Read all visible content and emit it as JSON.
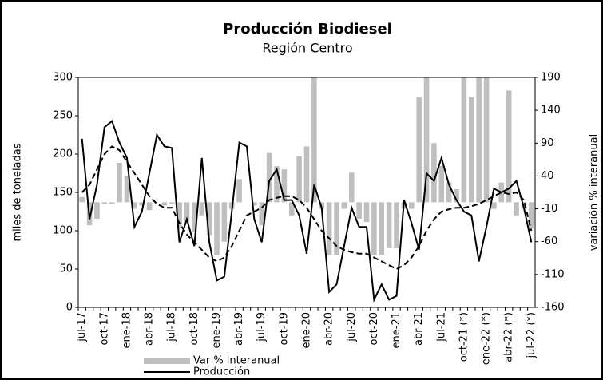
{
  "chart_data": {
    "type": "bar-line",
    "title": "Producción Biodiesel",
    "subtitle": "Región Centro",
    "ylabel": "miles de toneladas",
    "y2label": "variación % interanual",
    "categories": [
      "jul-17",
      null,
      null,
      "oct-17",
      null,
      null,
      "ene-18",
      null,
      null,
      "abr-18",
      null,
      null,
      "jul-18",
      null,
      null,
      "oct-18",
      null,
      null,
      "ene-19",
      null,
      null,
      "abr-19",
      null,
      null,
      "jul-19",
      null,
      null,
      "oct-19",
      null,
      null,
      "ene-20",
      null,
      null,
      "abr-20",
      null,
      null,
      "jul-20",
      null,
      null,
      "oct-20",
      null,
      null,
      "ene-21",
      null,
      null,
      "abr-21",
      null,
      null,
      "jul-21",
      null,
      null,
      "oct-21 (*)",
      null,
      null,
      "ene-22 (*)",
      null,
      null,
      "abr-22 (*)",
      null,
      null,
      "jul-22 (*)"
    ],
    "ylim": [
      0,
      300
    ],
    "yticks": [
      0,
      50,
      100,
      150,
      200,
      250,
      300
    ],
    "y2lim": [
      -160,
      190
    ],
    "y2ticks": [
      -160,
      -110,
      -60,
      -10,
      40,
      90,
      140,
      190
    ],
    "series": [
      {
        "name": "Var % interanual",
        "type": "bar",
        "axis": "y2",
        "color": "#bfbfbf",
        "values": [
          8,
          -35,
          -25,
          -2,
          -3,
          60,
          40,
          -10,
          -5,
          -12,
          0,
          -5,
          -3,
          -40,
          -30,
          -45,
          -20,
          -50,
          -80,
          -60,
          -10,
          35,
          0,
          -5,
          -35,
          75,
          55,
          50,
          -20,
          70,
          85,
          200,
          -10,
          -80,
          -80,
          -10,
          45,
          -25,
          -30,
          -80,
          -80,
          -70,
          -70,
          -10,
          -10,
          160,
          200,
          90,
          55,
          30,
          20,
          200,
          160,
          200,
          200,
          -10,
          30,
          170,
          -20,
          -10,
          -40
        ]
      },
      {
        "name": "Producción",
        "type": "line",
        "color": "#000000",
        "values": [
          220,
          115,
          160,
          235,
          243,
          215,
          195,
          105,
          125,
          175,
          225,
          210,
          208,
          85,
          115,
          80,
          195,
          85,
          35,
          40,
          125,
          215,
          210,
          115,
          85,
          165,
          180,
          140,
          140,
          120,
          70,
          160,
          130,
          20,
          30,
          80,
          130,
          105,
          105,
          10,
          30,
          10,
          15,
          140,
          110,
          75,
          175,
          165,
          195,
          160,
          140,
          125,
          120,
          60,
          105,
          155,
          150,
          155,
          165,
          130,
          85
        ]
      },
      {
        "type": "line",
        "dash": true,
        "color": "#000000",
        "values": [
          150,
          160,
          180,
          200,
          210,
          205,
          190,
          175,
          160,
          145,
          135,
          130,
          130,
          110,
          95,
          85,
          75,
          65,
          60,
          65,
          80,
          100,
          120,
          125,
          130,
          140,
          143,
          145,
          145,
          140,
          130,
          115,
          100,
          90,
          80,
          75,
          72,
          70,
          70,
          65,
          60,
          55,
          50,
          55,
          65,
          80,
          100,
          115,
          125,
          128,
          130,
          130,
          132,
          135,
          140,
          145,
          150,
          148,
          150,
          140,
          100
        ]
      }
    ]
  }
}
